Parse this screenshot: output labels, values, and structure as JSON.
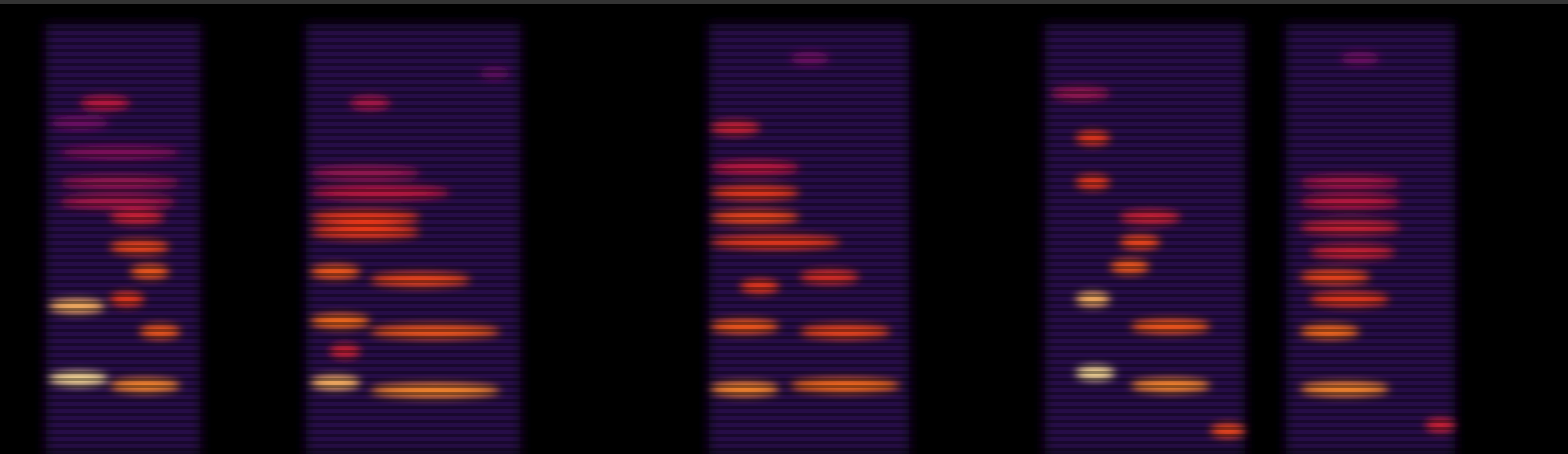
{
  "chart_data": {
    "type": "spectrogram",
    "xlim": [
      0,
      10
    ],
    "ylim": [
      0,
      8
    ],
    "zlim": [
      0,
      1
    ],
    "tick_labels": false,
    "segments": [
      [
        0.29,
        1.28
      ],
      [
        1.95,
        3.32
      ],
      [
        4.52,
        5.8
      ],
      [
        6.66,
        7.94
      ],
      [
        8.2,
        9.28
      ]
    ],
    "segment_values": [
      0.15,
      0.15,
      0.15,
      0.15,
      0.15
    ],
    "blobs": {
      "x": [
        0.31,
        0.7,
        0.31,
        0.7,
        0.89,
        0.83,
        0.7,
        0.7,
        0.38,
        0.38,
        0.38,
        0.51,
        0.32,
        1.98,
        2.36,
        1.98,
        2.36,
        1.98,
        2.36,
        1.98,
        1.98,
        1.98,
        1.98,
        2.23,
        2.1,
        3.06,
        4.53,
        5.04,
        4.53,
        5.1,
        4.72,
        5.1,
        4.53,
        4.53,
        4.53,
        4.53,
        4.53,
        5.04,
        6.86,
        7.21,
        6.86,
        7.21,
        7.08,
        7.14,
        7.14,
        6.86,
        6.86,
        6.7,
        7.72,
        8.29,
        8.29,
        8.35,
        8.29,
        8.35,
        8.29,
        8.29,
        8.29,
        8.55,
        9.09
      ],
      "x_end": [
        0.69,
        1.15,
        0.67,
        0.92,
        1.15,
        1.08,
        1.08,
        1.05,
        1.12,
        1.15,
        1.15,
        0.83,
        0.7,
        2.3,
        3.19,
        2.36,
        3.19,
        2.3,
        3.0,
        2.68,
        2.68,
        2.87,
        2.68,
        2.49,
        2.3,
        3.25,
        4.97,
        5.74,
        4.97,
        5.68,
        4.97,
        5.48,
        5.36,
        5.1,
        5.1,
        5.1,
        4.85,
        5.29,
        7.11,
        7.72,
        7.08,
        7.72,
        7.33,
        7.4,
        7.53,
        7.08,
        7.08,
        7.08,
        7.94,
        8.86,
        8.67,
        8.86,
        8.74,
        8.9,
        8.93,
        8.93,
        8.93,
        8.8,
        9.28
      ],
      "y": [
        1.34,
        1.22,
        2.63,
        2.75,
        2.18,
        3.24,
        3.68,
        4.21,
        4.48,
        4.83,
        5.36,
        6.24,
        5.89,
        1.27,
        1.13,
        2.36,
        2.18,
        3.24,
        3.1,
        3.95,
        4.21,
        4.65,
        5.0,
        6.24,
        1.83,
        6.77,
        1.16,
        1.22,
        2.27,
        2.18,
        2.98,
        3.15,
        3.77,
        4.21,
        4.65,
        5.09,
        5.8,
        7.03,
        1.44,
        1.22,
        2.75,
        2.27,
        3.33,
        3.77,
        4.21,
        4.83,
        5.62,
        6.41,
        0.42,
        1.16,
        2.18,
        2.75,
        3.15,
        3.59,
        4.03,
        4.48,
        4.83,
        7.03,
        0.51
      ],
      "values": [
        1.0,
        0.9,
        0.95,
        0.7,
        0.8,
        0.8,
        0.75,
        0.6,
        0.5,
        0.45,
        0.4,
        0.55,
        0.35,
        0.95,
        0.9,
        0.85,
        0.8,
        0.8,
        0.75,
        0.7,
        0.7,
        0.55,
        0.45,
        0.5,
        0.6,
        0.3,
        0.9,
        0.85,
        0.8,
        0.75,
        0.7,
        0.65,
        0.7,
        0.75,
        0.7,
        0.55,
        0.6,
        0.35,
        1.0,
        0.9,
        0.95,
        0.8,
        0.8,
        0.75,
        0.6,
        0.7,
        0.7,
        0.45,
        0.75,
        0.9,
        0.85,
        0.7,
        0.75,
        0.6,
        0.6,
        0.55,
        0.5,
        0.35,
        0.6
      ]
    }
  }
}
